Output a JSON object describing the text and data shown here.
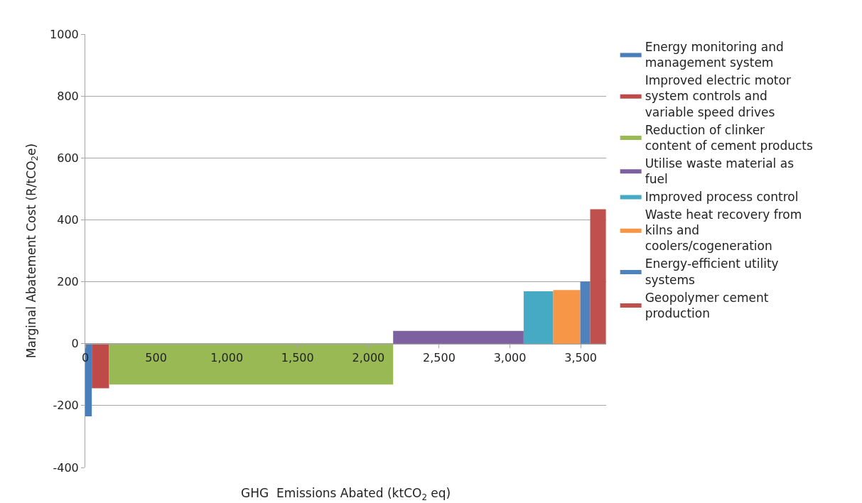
{
  "chart_data": {
    "type": "area",
    "xlabel": "GHG  Emissions Abated (ktCO$_{2}$ eq)",
    "ylabel": "Marginal Abatement Cost (R/tCO$_{2}$e)",
    "xlim": [
      0,
      3680
    ],
    "xticks": [
      0,
      500,
      {
        "value": 1000,
        "label": "1,000"
      },
      {
        "value": 1500,
        "label": "1,500"
      },
      {
        "value": 2000,
        "label": "2,000"
      },
      {
        "value": 2500,
        "label": "2,500"
      },
      {
        "value": 3000,
        "label": "3,000"
      },
      {
        "value": 3500,
        "label": "3,500"
      }
    ],
    "ylim": [
      -400,
      1000
    ],
    "yticks": [
      -400,
      -200,
      0,
      200,
      400,
      600,
      800,
      1000
    ],
    "grid": "y",
    "legend": "right",
    "series": [
      {
        "name": "Energy monitoring and management system",
        "color": "#4a7ebb",
        "x": [
          0,
          46
        ],
        "values": [
          -235,
          -235
        ]
      },
      {
        "name": "Improved electric motor system controls and variable speed drives",
        "color": "#be4b48",
        "x": [
          46,
          168
        ],
        "values": [
          -144,
          -144
        ]
      },
      {
        "name": "Reduction of clinker content of cement products",
        "color": "#98b954",
        "x": [
          168,
          2175
        ],
        "values": [
          -132,
          -132
        ]
      },
      {
        "name": "Utilise waste material as fuel",
        "color": "#7d60a0",
        "x": [
          2175,
          3097
        ],
        "values": [
          41,
          41
        ]
      },
      {
        "name": "Improved process control",
        "color": "#46aac5",
        "x": [
          3097,
          3306
        ],
        "values": [
          169,
          169
        ]
      },
      {
        "name": "Waste heat recovery from kilns and coolers/cogeneration",
        "color": "#f79646",
        "x": [
          3306,
          3497
        ],
        "values": [
          173,
          173
        ]
      },
      {
        "name": "Energy-efficient utility systems",
        "color": "#4f81bd",
        "x": [
          3497,
          3567
        ],
        "values": [
          201,
          201
        ]
      },
      {
        "name": "Geopolymer cement production",
        "color": "#c0504d",
        "x": [
          3567,
          3678
        ],
        "values": [
          434,
          434
        ]
      }
    ]
  }
}
